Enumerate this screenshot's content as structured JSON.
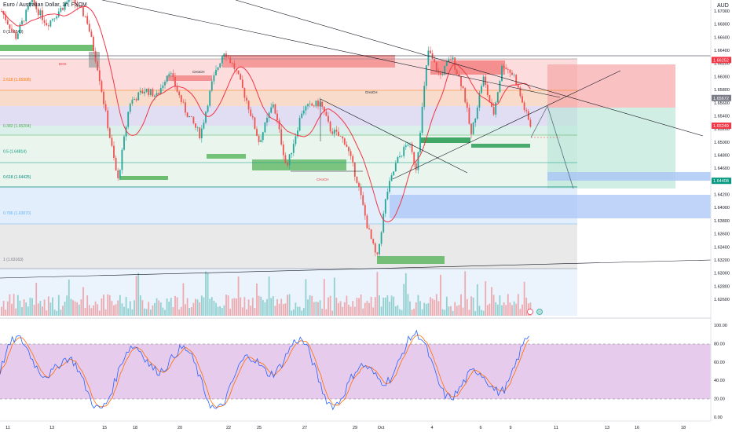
{
  "header": {
    "symbol_label": "Euro / Australian Dollar, 1h, FXCM",
    "currency_label": "AUD"
  },
  "price_axis": {
    "labels": [
      "1.67000",
      "1.66800",
      "1.66600",
      "1.66400",
      "1.66200",
      "1.66000",
      "1.65800",
      "1.65600",
      "1.65400",
      "1.65200",
      "1.65000",
      "1.64800",
      "1.64600",
      "1.64400",
      "1.64200",
      "1.64000",
      "1.63800",
      "1.63600",
      "1.63400",
      "1.63200",
      "1.63000",
      "1.62800",
      "1.62600"
    ],
    "values": [
      1.67,
      1.668,
      1.666,
      1.664,
      1.662,
      1.66,
      1.658,
      1.656,
      1.654,
      1.652,
      1.65,
      1.648,
      1.646,
      1.644,
      1.642,
      1.64,
      1.638,
      1.636,
      1.634,
      1.632,
      1.63,
      1.628,
      1.626
    ],
    "badges": [
      {
        "text": "1.66252",
        "color": "#f23645",
        "value": 1.66252
      },
      {
        "text": "1.65672",
        "color": "#787b86",
        "value": 1.65672
      },
      {
        "text": "1.65249",
        "color": "#f23645",
        "value": 1.65249
      },
      {
        "text": "1.64408",
        "color": "#089981",
        "value": 1.64408
      }
    ]
  },
  "oscillator_axis": {
    "labels": [
      "100.00",
      "80.00",
      "60.00",
      "40.00",
      "20.00",
      "0.00"
    ],
    "values": [
      100,
      80,
      60,
      40,
      20,
      0
    ]
  },
  "time_axis": {
    "labels": [
      "11",
      "13",
      "15",
      "18",
      "20",
      "22",
      "25",
      "27",
      "29",
      "Oct",
      "4",
      "6",
      "9",
      "11",
      "13",
      "16",
      "18"
    ],
    "index": [
      0,
      2,
      4,
      7,
      9,
      11,
      14,
      16,
      18,
      20,
      23,
      25,
      28,
      30,
      32,
      35,
      37
    ]
  },
  "fib_labels": [
    {
      "text": "0 (1.66640)",
      "value": 1.6664
    },
    {
      "text": "2.618 (1.65908)",
      "value": 1.65908
    },
    {
      "text": "0.382 (1.65204)",
      "value": 1.65204
    },
    {
      "text": "0.5 (1.64814)",
      "value": 1.64814
    },
    {
      "text": "0.618 (1.64425)",
      "value": 1.64425
    },
    {
      "text": "0.786 (1.63870)",
      "value": 1.6387
    },
    {
      "text": "1 (1.63163)",
      "value": 1.63163
    }
  ],
  "annotations": [
    {
      "text": "CHoCH",
      "color": "#f23645"
    },
    {
      "text": "CHoCH",
      "color": "#131722"
    },
    {
      "text": "CHoCH",
      "color": "#131722"
    },
    {
      "text": "BOS",
      "color": "#f23645"
    }
  ],
  "colors": {
    "bull": "#26a69a",
    "bear": "#ef5350",
    "stoch_k": "#2962ff",
    "stoch_d": "#ff6d00",
    "stoch_band": "#e1bee7",
    "zone_red": "#f5b7b7",
    "zone_green": "#b9e4c9",
    "zone_blue": "#cfe2fb",
    "zone_gray": "#e0e0e0"
  }
}
